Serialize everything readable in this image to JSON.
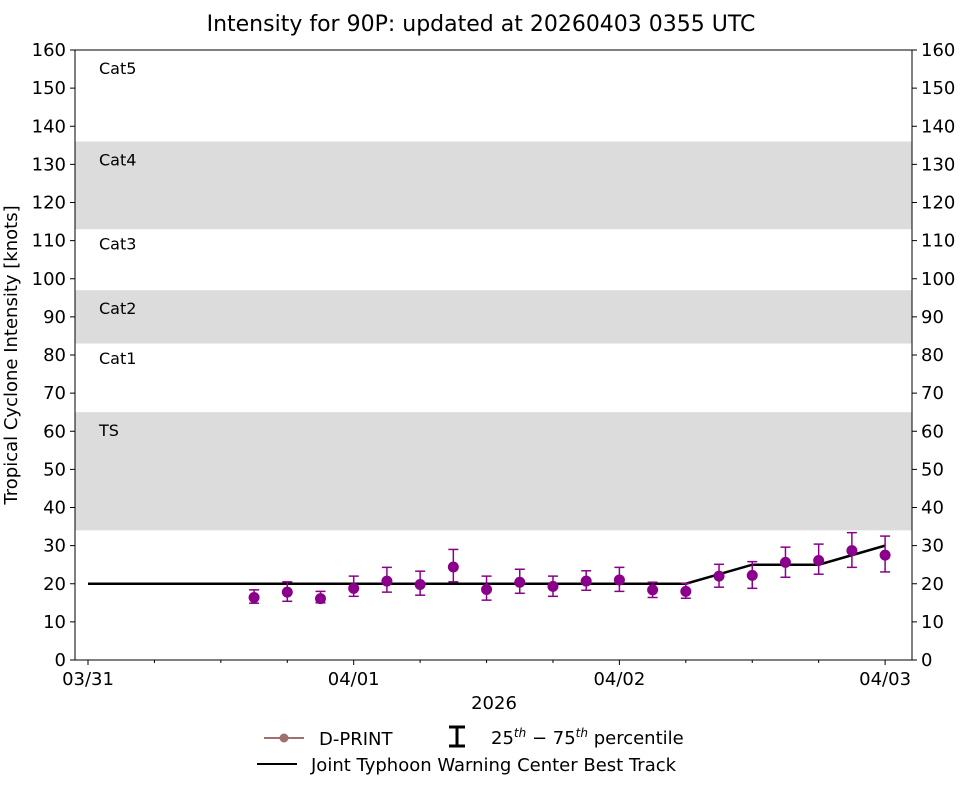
{
  "chart_data": {
    "type": "scatter",
    "title": "Intensity for 90P: updated at 20260403 0355 UTC",
    "xlabel": "2026",
    "ylabel": "Tropical Cyclone Intensity [knots]",
    "ylim": [
      0,
      160
    ],
    "yticks": [
      0,
      10,
      20,
      30,
      40,
      50,
      60,
      70,
      80,
      90,
      100,
      110,
      120,
      130,
      140,
      150,
      160
    ],
    "xlim_days": [
      "03/31 00",
      "04/03 00"
    ],
    "xtick_labels": [
      "03/31",
      "04/01",
      "04/02",
      "04/03"
    ],
    "grid": false,
    "legend_placement": "bottom",
    "categories": [
      {
        "label": "TS",
        "min": 34,
        "max": 64,
        "shaded": true
      },
      {
        "label": "Cat1",
        "min": 64,
        "max": 83,
        "shaded": false
      },
      {
        "label": "Cat2",
        "min": 83,
        "max": 96,
        "shaded": true
      },
      {
        "label": "Cat3",
        "min": 96,
        "max": 113,
        "shaded": false
      },
      {
        "label": "Cat4",
        "min": 113,
        "max": 135,
        "shaded": true
      },
      {
        "label": "Cat5",
        "min": 135,
        "max": 160,
        "shaded": false
      }
    ],
    "series": [
      {
        "name": "D-PRINT",
        "color": "#8b008b",
        "legend_color": "#a07070",
        "x": [
          "03/31 15",
          "03/31 18",
          "03/31 21",
          "04/01 00",
          "04/01 03",
          "04/01 06",
          "04/01 09",
          "04/01 12",
          "04/01 15",
          "04/01 18",
          "04/01 21",
          "04/02 00",
          "04/02 03",
          "04/02 06",
          "04/02 09",
          "04/02 12",
          "04/02 15",
          "04/02 18",
          "04/02 21",
          "04/03 00"
        ],
        "y": [
          16.4,
          17.8,
          16.1,
          18.8,
          20.7,
          19.8,
          24.4,
          18.5,
          20.4,
          19.3,
          20.7,
          21.0,
          18.4,
          18.0,
          22.0,
          22.2,
          25.6,
          26.1,
          28.7,
          27.5
        ],
        "p25": [
          14.9,
          15.4,
          15.0,
          16.7,
          17.8,
          17.0,
          20.5,
          15.7,
          17.5,
          16.7,
          18.3,
          18.0,
          16.4,
          16.2,
          19.1,
          18.8,
          21.7,
          22.5,
          24.3,
          23.1
        ],
        "p75": [
          18.4,
          20.5,
          18.0,
          22.0,
          24.3,
          23.3,
          29.0,
          22.0,
          23.8,
          22.0,
          23.4,
          24.3,
          20.4,
          20.1,
          25.1,
          25.8,
          29.6,
          30.4,
          33.4,
          32.5
        ]
      },
      {
        "name": "Joint Typhoon Warning Center Best Track",
        "color": "#000000",
        "x": [
          "03/31 00",
          "04/02 06",
          "04/02 12",
          "04/02 18",
          "04/03 00"
        ],
        "y": [
          20,
          20,
          25,
          25,
          30
        ]
      }
    ],
    "legend": {
      "dprint": "D-PRINT",
      "percentile_pre": "25",
      "percentile_sup1": "th",
      "percentile_mid": " − 75",
      "percentile_sup2": "th",
      "percentile_post": " percentile",
      "best_track": "Joint Typhoon Warning Center Best Track"
    }
  }
}
